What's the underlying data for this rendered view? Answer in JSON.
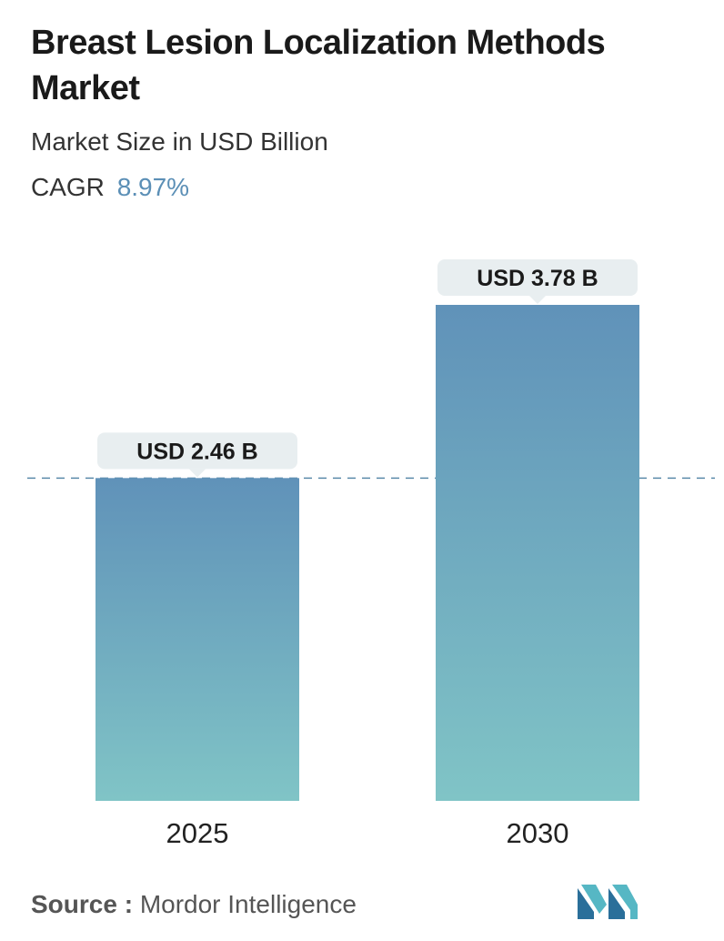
{
  "header": {
    "title": "Breast Lesion Localization Methods Market",
    "subtitle": "Market Size in USD Billion",
    "cagr_label": "CAGR",
    "cagr_value": "8.97%"
  },
  "chart_data": {
    "type": "bar",
    "categories": [
      "2025",
      "2030"
    ],
    "values": [
      2.46,
      3.78
    ],
    "data_labels": [
      "USD 2.46 B",
      "USD 3.78 B"
    ],
    "title": "Breast Lesion Localization Methods Market",
    "subtitle": "Market Size in USD Billion",
    "unit": "USD Billion",
    "ylim": [
      0,
      3.78
    ],
    "grid": false,
    "reference_line_value": 2.46,
    "colors": {
      "bar_top": "#6092b9",
      "bar_bottom": "#80c4c6",
      "label_bg": "#e8eef0",
      "dashed_line": "#5b8aaa"
    }
  },
  "footer": {
    "source_label": "Source :",
    "source_value": "Mordor Intelligence",
    "logo_icon": "mordor-intelligence-logo"
  },
  "colors": {
    "accent": "#5b8fb6",
    "logo_dark": "#2a6f9a",
    "logo_light": "#56b7c4"
  }
}
